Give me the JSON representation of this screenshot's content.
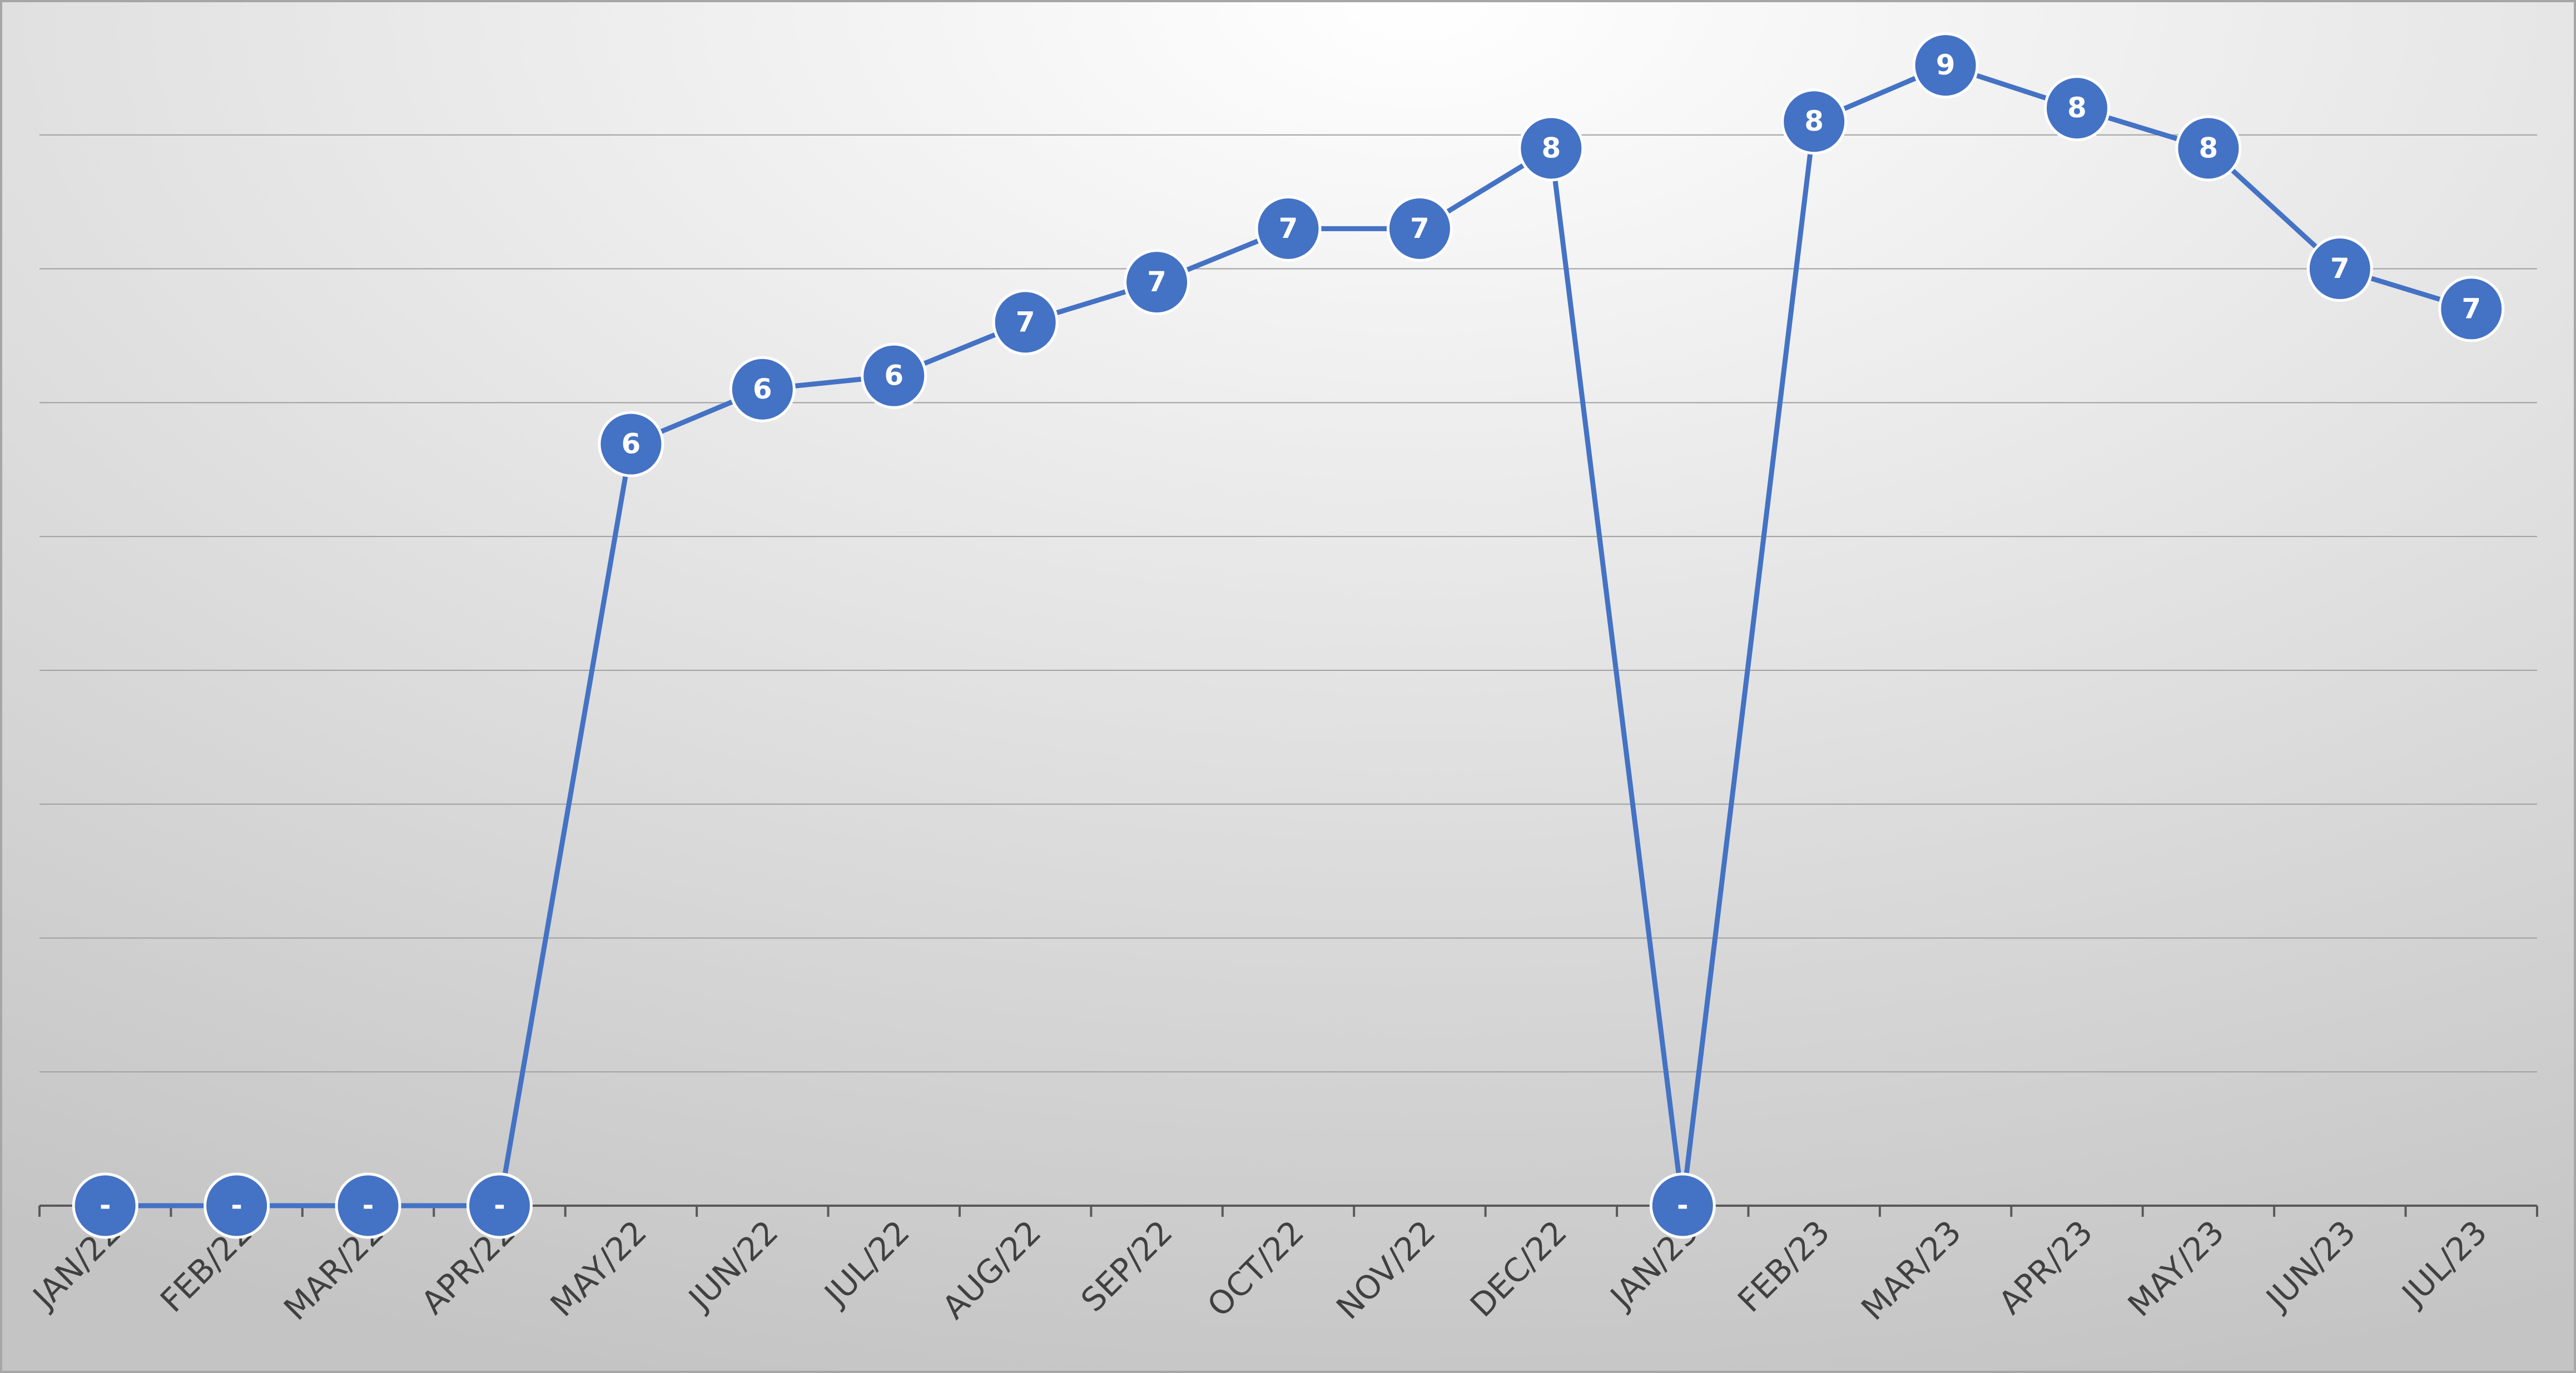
{
  "chart_data": {
    "type": "line",
    "categories": [
      "JAN/22",
      "FEB/22",
      "MAR/22",
      "APR/22",
      "MAY/22",
      "JUN/22",
      "JUL/22",
      "AUG/22",
      "SEP/22",
      "OCT/22",
      "NOV/22",
      "DEC/22",
      "JAN/23",
      "FEB/23",
      "MAR/23",
      "APR/23",
      "MAY/23",
      "JUN/23",
      "JUL/23"
    ],
    "series": [
      {
        "color": "#4472c4",
        "values": [
          0,
          0,
          0,
          0,
          5.69,
          6.1,
          6.2,
          6.6,
          6.9,
          7.3,
          7.3,
          7.9,
          0,
          8.1,
          8.52,
          8.2,
          7.9,
          7.0,
          6.7
        ],
        "value_labels": [
          "-",
          "-",
          "-",
          "-",
          "6",
          "6",
          "6",
          "7",
          "7",
          "7",
          "7",
          "8",
          "-",
          "8",
          "9",
          "8",
          "8",
          "7",
          "7"
        ]
      }
    ],
    "ylim": [
      0,
      9
    ],
    "yticks": [
      0,
      1,
      2,
      3,
      4,
      5,
      6,
      7,
      8
    ],
    "grid": true
  }
}
